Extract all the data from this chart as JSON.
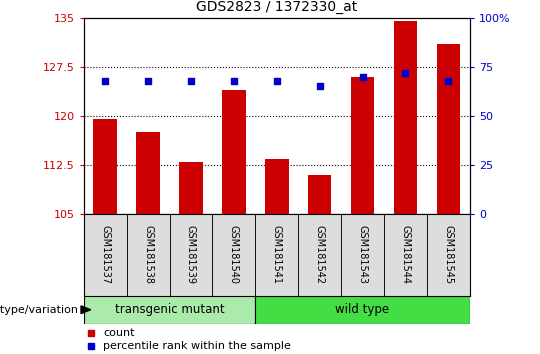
{
  "title": "GDS2823 / 1372330_at",
  "samples": [
    "GSM181537",
    "GSM181538",
    "GSM181539",
    "GSM181540",
    "GSM181541",
    "GSM181542",
    "GSM181543",
    "GSM181544",
    "GSM181545"
  ],
  "bar_values": [
    119.5,
    117.5,
    113.0,
    124.0,
    113.5,
    111.0,
    126.0,
    134.5,
    131.0
  ],
  "percentile_values": [
    68,
    68,
    68,
    68,
    68,
    65,
    70,
    72,
    68
  ],
  "ylim_left": [
    105,
    135
  ],
  "ylim_right": [
    0,
    100
  ],
  "yticks_left": [
    105,
    112.5,
    120,
    127.5,
    135
  ],
  "yticks_right": [
    0,
    25,
    50,
    75,
    100
  ],
  "bar_color": "#cc0000",
  "percentile_color": "#0000cc",
  "transgenic_color": "#aaeaaa",
  "wildtype_color": "#44dd44",
  "transgenic_samples": 4,
  "wildtype_samples": 5,
  "transgenic_label": "transgenic mutant",
  "wildtype_label": "wild type",
  "genotype_label": "genotype/variation",
  "legend_count": "count",
  "legend_percentile": "percentile rank within the sample",
  "bar_width": 0.55,
  "grid_yticks": [
    112.5,
    120.0,
    127.5
  ],
  "tick_label_color_left": "#cc0000",
  "tick_label_color_right": "#0000cc",
  "bg_color_sample": "#dddddd",
  "figure_bg": "#ffffff"
}
